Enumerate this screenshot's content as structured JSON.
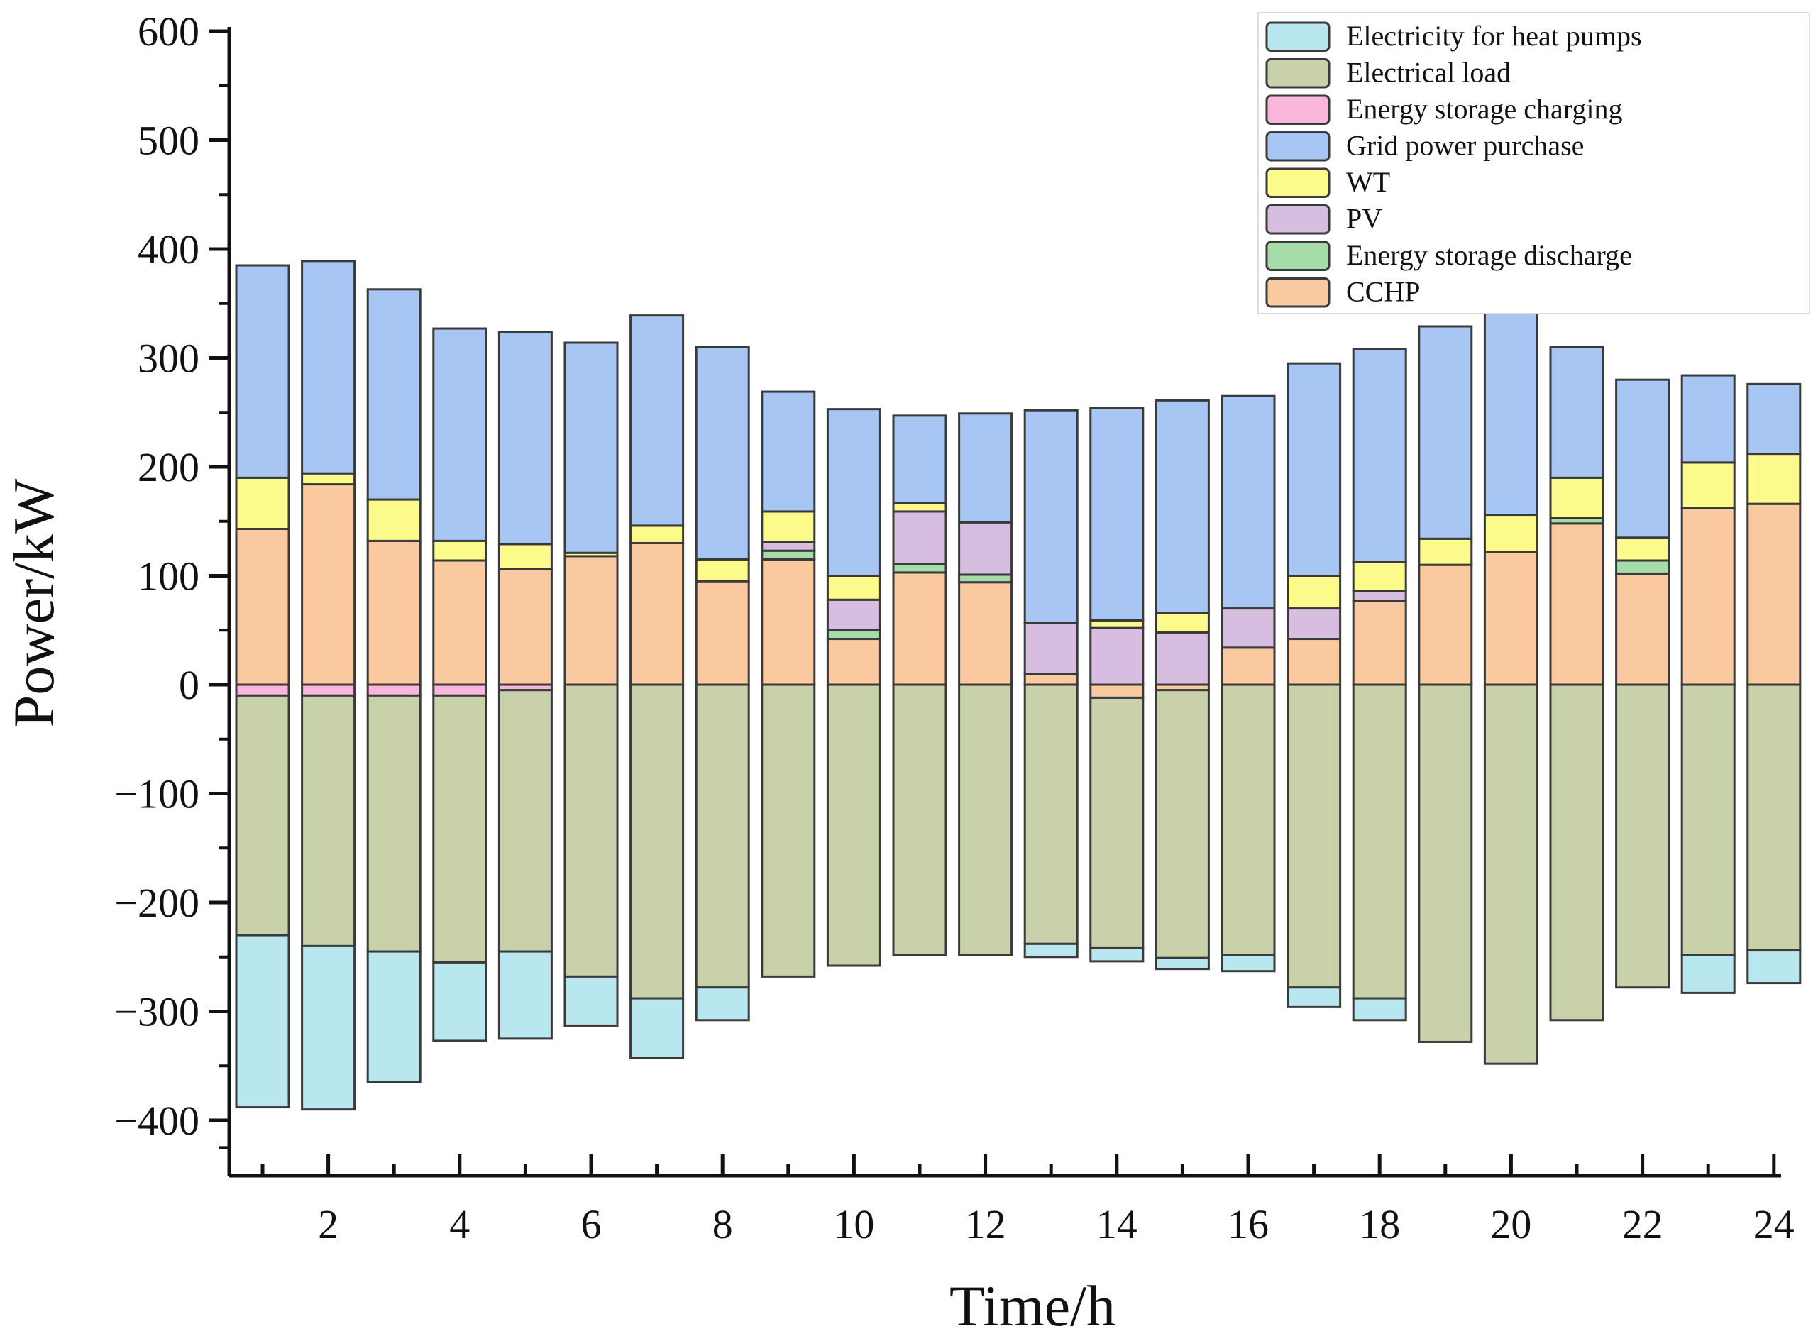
{
  "chart_data": {
    "type": "bar",
    "stacked": true,
    "xlabel": "Time/h",
    "ylabel": "Power/kW",
    "ylim": [
      -450,
      600
    ],
    "yticks": [
      600,
      500,
      400,
      300,
      200,
      100,
      0,
      -100,
      -200,
      -300,
      -400
    ],
    "yticklabels": [
      "600",
      "500",
      "400",
      "300",
      "200",
      "100",
      "0",
      "−100",
      "−200",
      "−300",
      "−400"
    ],
    "x": [
      1,
      2,
      3,
      4,
      5,
      6,
      7,
      8,
      9,
      10,
      11,
      12,
      13,
      14,
      15,
      16,
      17,
      18,
      19,
      20,
      21,
      22,
      23,
      24
    ],
    "xticks": [
      2,
      4,
      6,
      8,
      10,
      12,
      14,
      16,
      18,
      20,
      22,
      24
    ],
    "xticklabels": [
      "2",
      "4",
      "6",
      "8",
      "10",
      "12",
      "14",
      "16",
      "18",
      "20",
      "22",
      "24"
    ],
    "legend_position": "top-right",
    "legend": [
      "Electricity for heat pumps",
      "Electrical load",
      "Energy storage charging",
      "Grid power purchase",
      "WT",
      "PV",
      "Energy storage discharge",
      "CCHP"
    ],
    "series_positive": [
      {
        "name": "CCHP",
        "color": "#fbc9a0",
        "values": [
          143,
          184,
          132,
          114,
          106,
          118,
          130,
          95,
          115,
          42,
          103,
          94,
          10,
          0,
          0,
          34,
          42,
          77,
          110,
          122,
          148,
          102,
          162,
          166
        ]
      },
      {
        "name": "Energy storage discharge",
        "color": "#a5dca8",
        "values": [
          0,
          0,
          0,
          0,
          0,
          0,
          0,
          0,
          8,
          8,
          8,
          7,
          0,
          0,
          0,
          0,
          0,
          0,
          0,
          0,
          5,
          12,
          0,
          0
        ]
      },
      {
        "name": "PV",
        "color": "#d7bde0",
        "values": [
          0,
          0,
          0,
          0,
          0,
          0,
          0,
          0,
          8,
          28,
          48,
          48,
          47,
          52,
          48,
          36,
          28,
          9,
          0,
          0,
          0,
          0,
          0,
          0
        ]
      },
      {
        "name": "WT",
        "color": "#fdfa8c",
        "values": [
          47,
          10,
          38,
          18,
          23,
          3,
          16,
          20,
          28,
          22,
          8,
          0,
          0,
          7,
          18,
          0,
          30,
          27,
          24,
          34,
          37,
          21,
          42,
          46
        ]
      },
      {
        "name": "Grid power purchase",
        "color": "#a8c6f4",
        "values": [
          195,
          195,
          193,
          195,
          195,
          193,
          193,
          195,
          110,
          153,
          80,
          100,
          195,
          195,
          195,
          195,
          195,
          195,
          195,
          195,
          120,
          145,
          80,
          64
        ]
      }
    ],
    "series_negative": [
      {
        "name": "Energy storage charging",
        "color": "#f9b5db",
        "values": [
          10,
          10,
          10,
          10,
          5,
          0,
          0,
          0,
          0,
          0,
          0,
          0,
          0,
          0,
          0,
          0,
          0,
          0,
          0,
          0,
          0,
          0,
          0,
          0
        ]
      },
      {
        "name": "Energy storage charging (local)",
        "color": "#fbc9a0",
        "values": [
          0,
          0,
          0,
          0,
          0,
          0,
          0,
          0,
          0,
          0,
          0,
          0,
          0,
          12,
          5,
          0,
          0,
          0,
          0,
          0,
          0,
          0,
          0,
          0
        ]
      },
      {
        "name": "Electrical load",
        "color": "#c9d1ab",
        "values": [
          220,
          230,
          235,
          245,
          240,
          268,
          288,
          278,
          268,
          258,
          248,
          248,
          238,
          230,
          246,
          248,
          278,
          288,
          328,
          348,
          308,
          278,
          248,
          244
        ]
      },
      {
        "name": "Electricity for heat pumps",
        "color": "#b9e7ef",
        "values": [
          158,
          150,
          120,
          72,
          80,
          45,
          55,
          30,
          0,
          0,
          0,
          0,
          12,
          12,
          10,
          15,
          18,
          20,
          0,
          0,
          0,
          0,
          35,
          30
        ]
      }
    ]
  }
}
